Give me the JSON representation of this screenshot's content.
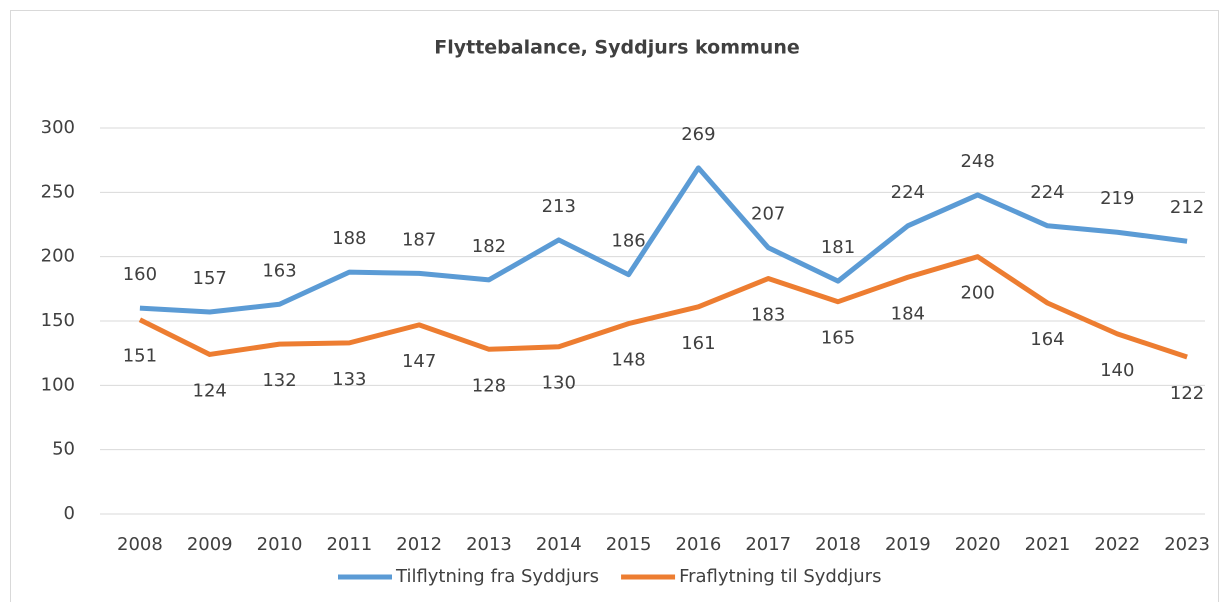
{
  "chart_data": {
    "type": "line",
    "title": "Flyttebalance, Syddjurs kommune",
    "categories": [
      "2008",
      "2009",
      "2010",
      "2011",
      "2012",
      "2013",
      "2014",
      "2015",
      "2016",
      "2017",
      "2018",
      "2019",
      "2020",
      "2021",
      "2022",
      "2023"
    ],
    "series": [
      {
        "name": "Tilflytning fra Syddjurs",
        "color": "#5b9bd5",
        "values": [
          160,
          157,
          163,
          188,
          187,
          182,
          213,
          186,
          269,
          207,
          181,
          224,
          248,
          224,
          219,
          212
        ]
      },
      {
        "name": "Fraflytning til Syddjurs",
        "color": "#ed7d31",
        "values": [
          151,
          124,
          132,
          133,
          147,
          128,
          130,
          148,
          161,
          183,
          165,
          184,
          200,
          164,
          140,
          122
        ]
      }
    ],
    "ylim": [
      0,
      300
    ],
    "yticks": [
      0,
      50,
      100,
      150,
      200,
      250,
      300
    ],
    "grid": true,
    "legend": "bottom",
    "data_labels": true
  }
}
